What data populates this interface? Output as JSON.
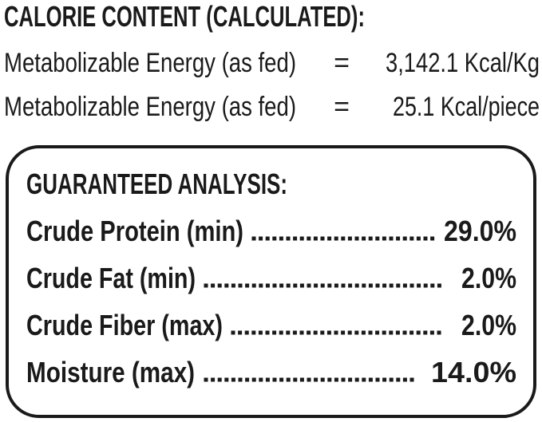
{
  "calorie_content": {
    "title": "CALORIE CONTENT (CALCULATED):",
    "rows": [
      {
        "label": "Metabolizable Energy (as fed)",
        "operator": "=",
        "value": "3,142.1 Kcal/Kg"
      },
      {
        "label": "Metabolizable Energy (as fed)",
        "operator": "=",
        "value": "25.1 Kcal/piece"
      }
    ]
  },
  "guaranteed_analysis": {
    "title": "GUARANTEED ANALYSIS:",
    "rows": [
      {
        "label": "Crude Protein (min)",
        "value": "29.0%"
      },
      {
        "label": "Crude Fat (min)",
        "value": "2.0%"
      },
      {
        "label": "Crude Fiber (max)",
        "value": "2.0%"
      },
      {
        "label": "Moisture (max)",
        "value": "14.0%"
      }
    ]
  }
}
